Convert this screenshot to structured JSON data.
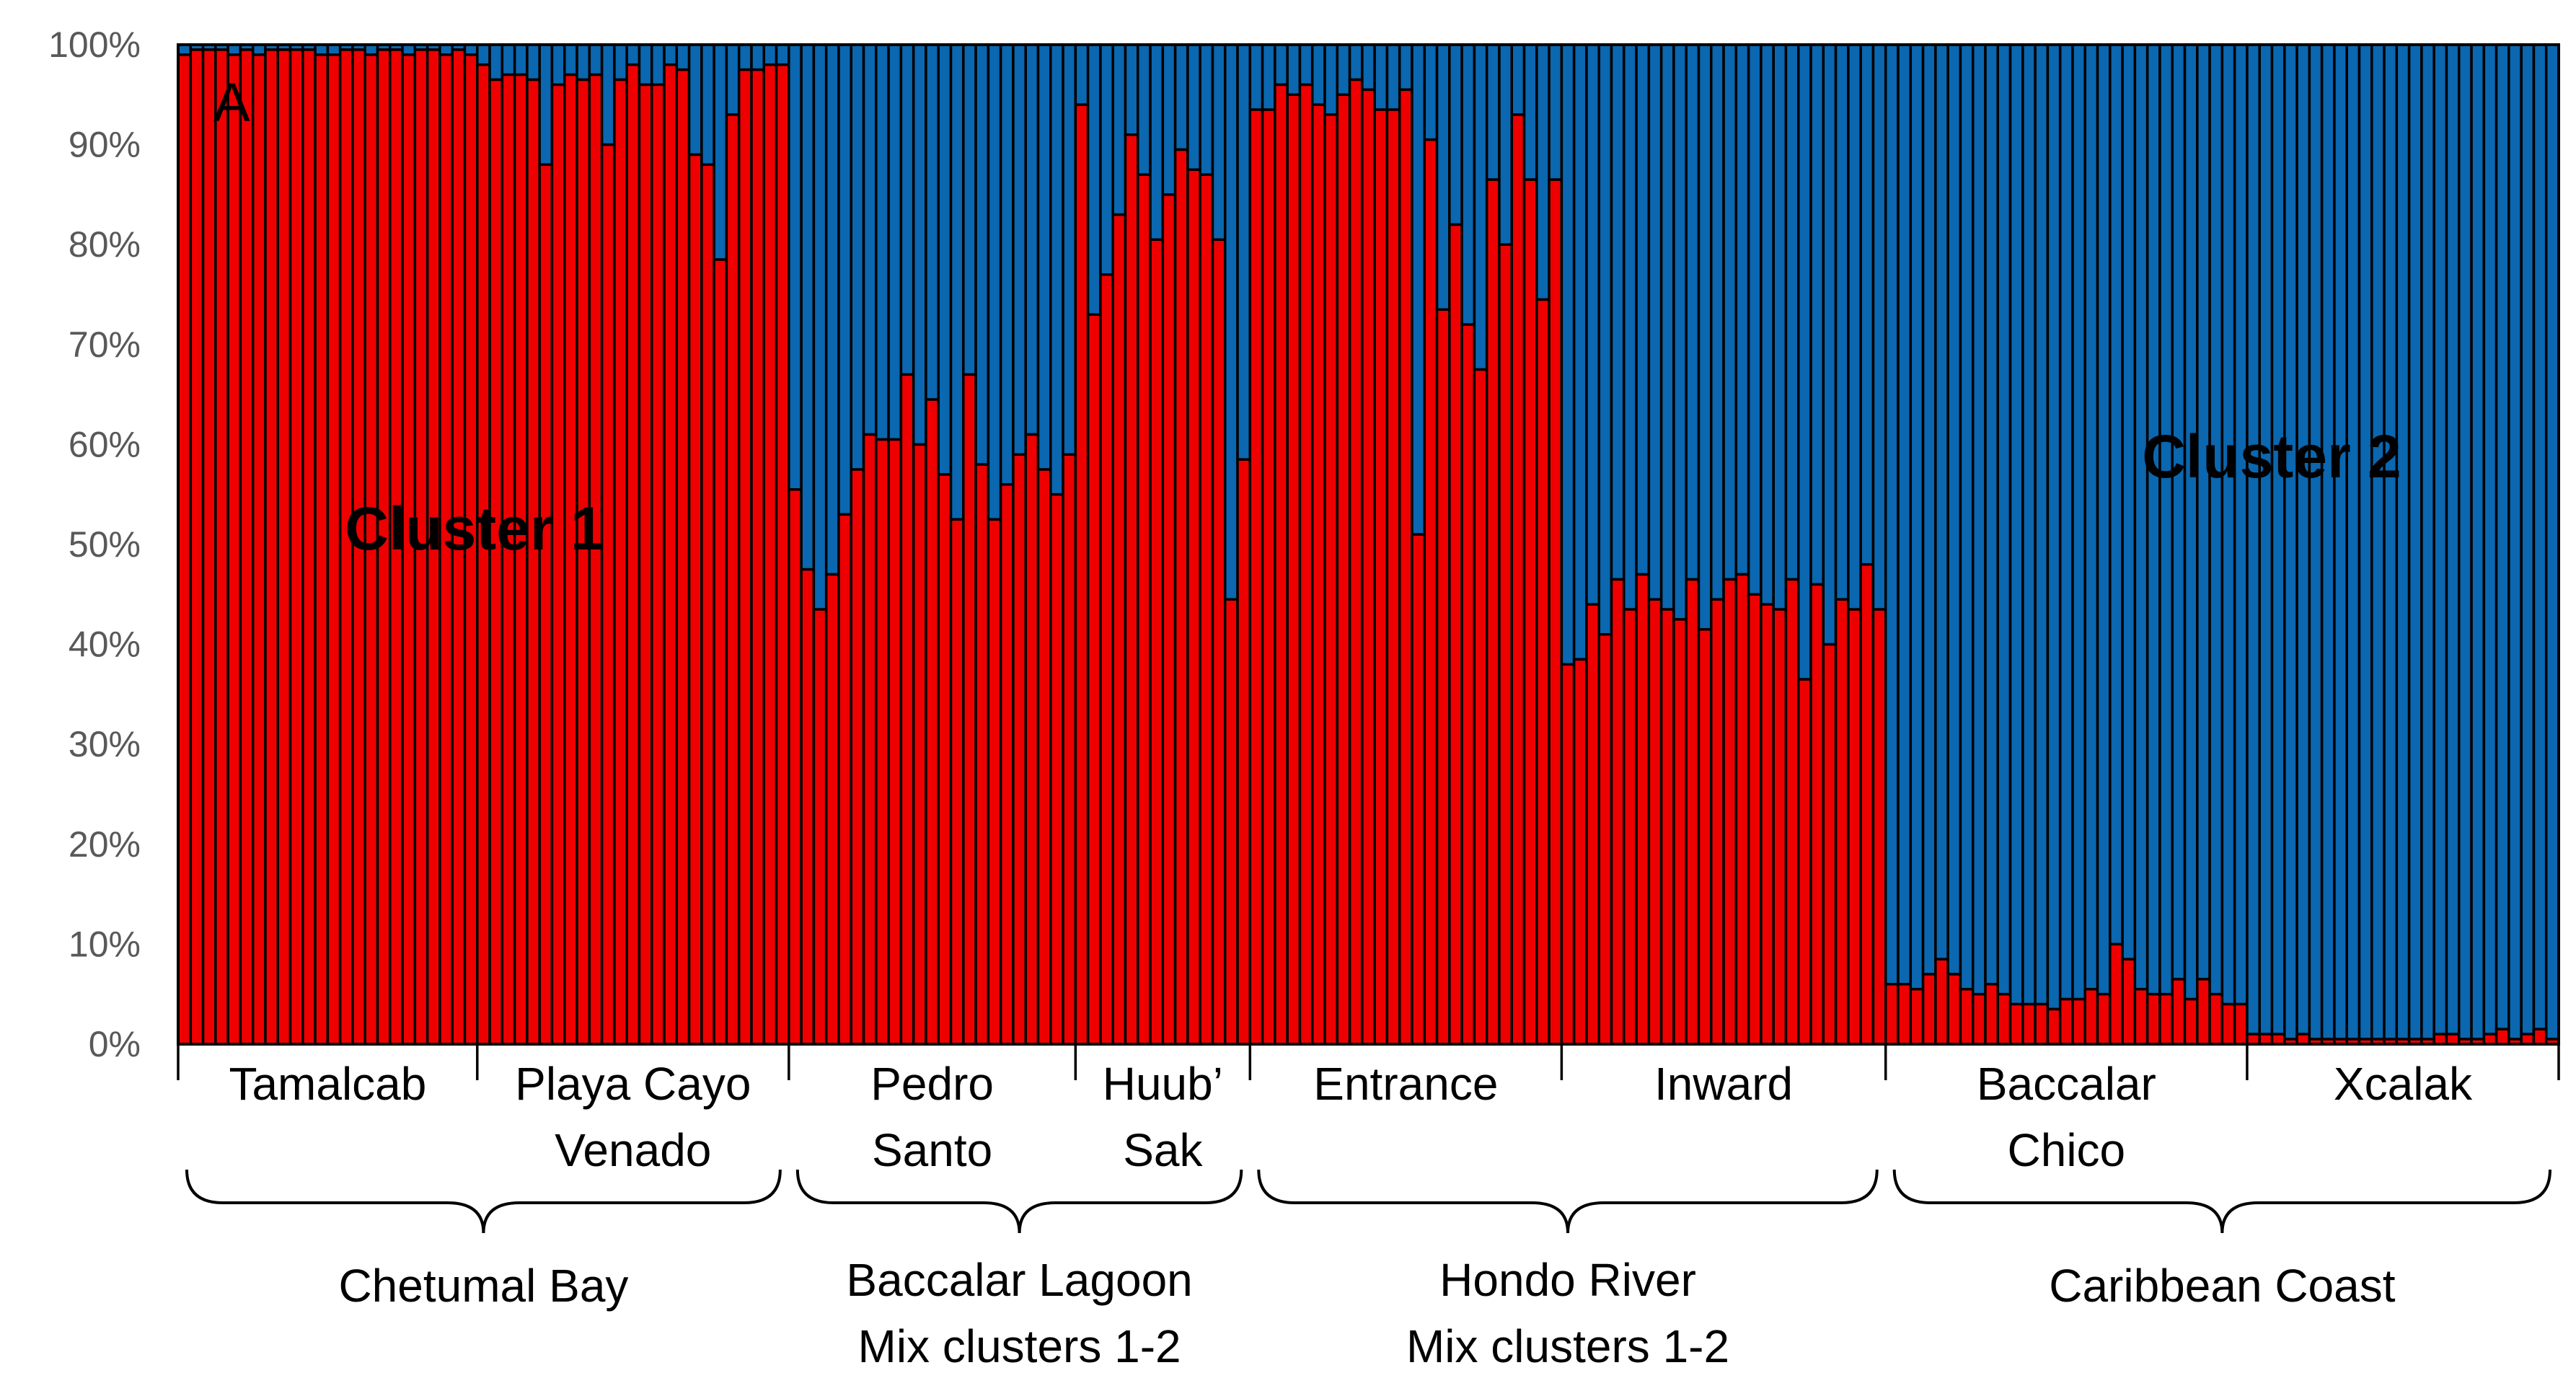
{
  "chart_data": {
    "type": "bar",
    "stacked": true,
    "normalized": true,
    "panel_label": "A",
    "cluster_labels": [
      "Cluster 1",
      "Cluster 2"
    ],
    "colors": {
      "cluster1": "#ee0000",
      "cluster2": "#0a67b0",
      "outline": "#000000"
    },
    "yticks": [
      "0%",
      "10%",
      "20%",
      "30%",
      "40%",
      "50%",
      "60%",
      "70%",
      "80%",
      "90%",
      "100%"
    ],
    "ylim": [
      0,
      100
    ],
    "grid": false,
    "series": [
      {
        "name": "Cluster 1",
        "color": "#ee0000"
      },
      {
        "name": "Cluster 2",
        "color": "#0a67b0"
      }
    ],
    "populations": [
      {
        "lines": [
          "Tamalcab"
        ],
        "cluster1": [
          99,
          99.5,
          99.5,
          99.5,
          99,
          99.5,
          99,
          99.5,
          99.5,
          99.5,
          99.5,
          99,
          99,
          99.5,
          99.5,
          99,
          99.5,
          99.5,
          99,
          99.5,
          99.5,
          99,
          99.5,
          99
        ]
      },
      {
        "lines": [
          "Playa Cayo",
          "Venado"
        ],
        "cluster1": [
          98,
          96.5,
          97,
          97,
          96.5,
          88,
          96,
          97,
          96.5,
          97,
          90,
          96.5,
          98,
          96,
          96,
          98,
          97.5,
          89,
          88,
          78.5,
          93,
          97.5,
          97.5,
          98,
          98
        ]
      },
      {
        "lines": [
          "Pedro",
          "Santo"
        ],
        "cluster1": [
          55.5,
          47.5,
          43.5,
          47,
          53,
          57.5,
          61,
          60.5,
          60.5,
          67,
          60,
          64.5,
          57,
          52.5,
          67,
          58,
          52.5,
          56,
          59,
          61,
          57.5,
          55,
          59
        ]
      },
      {
        "lines": [
          "Huub’",
          "Sak"
        ],
        "cluster1": [
          94,
          73,
          77,
          83,
          91,
          87,
          80.5,
          85,
          89.5,
          87.5,
          87,
          80.5,
          44.5,
          58.5
        ]
      },
      {
        "lines": [
          "Entrance"
        ],
        "cluster1": [
          93.5,
          93.5,
          96,
          95,
          96,
          94,
          93,
          95,
          96.5,
          95.5,
          93.5,
          93.5,
          95.5,
          51,
          90.5,
          73.5,
          82,
          72,
          67.5,
          86.5,
          80,
          93,
          86.5,
          74.5,
          86.5
        ]
      },
      {
        "lines": [
          "Inward"
        ],
        "cluster1": [
          38,
          38.5,
          44,
          41,
          46.5,
          43.5,
          47,
          44.5,
          43.5,
          42.5,
          46.5,
          41.5,
          44.5,
          46.5,
          47,
          45,
          44,
          43.5,
          46.5,
          36.5,
          46,
          40,
          44.5,
          43.5,
          48,
          43.5
        ]
      },
      {
        "lines": [
          "Baccalar",
          "Chico"
        ],
        "cluster1": [
          6,
          6,
          5.5,
          7,
          8.5,
          7,
          5.5,
          5,
          6,
          5,
          4,
          4,
          4,
          3.5,
          4.5,
          4.5,
          5.5,
          5,
          10,
          8.5,
          5.5,
          5,
          5,
          6.5,
          4.5,
          6.5,
          5,
          4,
          4
        ]
      },
      {
        "lines": [
          "Xcalak"
        ],
        "cluster1": [
          1,
          1,
          1,
          0.5,
          1,
          0.5,
          0.5,
          0.5,
          0.5,
          0.5,
          0.5,
          0.5,
          0.5,
          0.5,
          0.5,
          1,
          1,
          0.5,
          0.5,
          1,
          1.5,
          0.5,
          1,
          1.5,
          0.5
        ]
      }
    ],
    "regions": [
      {
        "lines": [
          "Chetumal Bay"
        ]
      },
      {
        "lines": [
          "Baccalar Lagoon",
          "Mix clusters 1-2"
        ]
      },
      {
        "lines": [
          "Hondo River",
          "Mix clusters 1-2"
        ]
      },
      {
        "lines": [
          "Caribbean Coast"
        ]
      }
    ]
  }
}
